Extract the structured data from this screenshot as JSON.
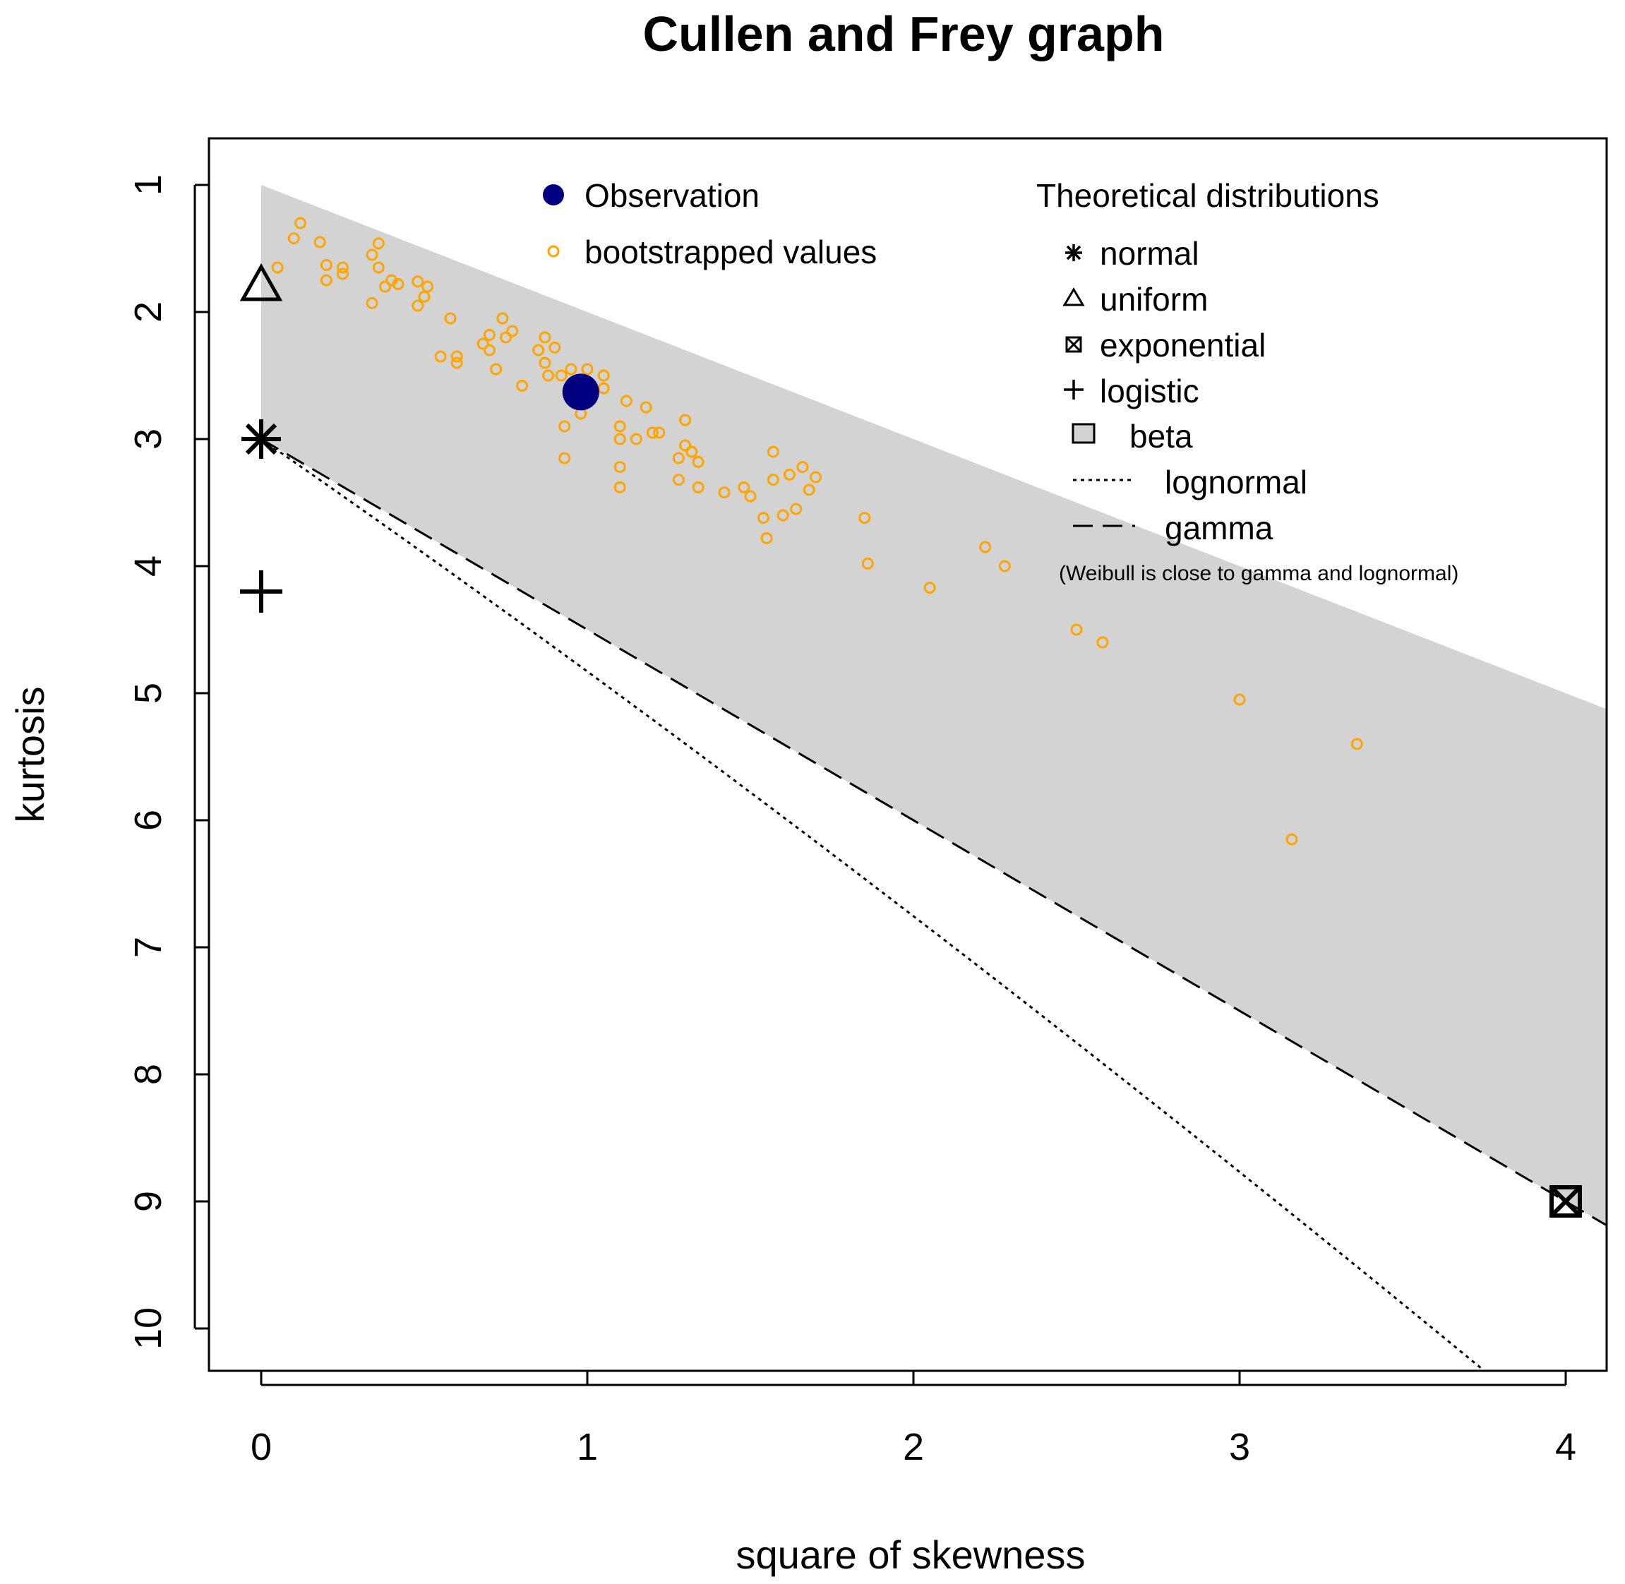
{
  "chart_data": {
    "type": "scatter",
    "title": "Cullen and Frey graph",
    "xlabel": "square of skewness",
    "ylabel": "kurtosis",
    "xlim": [
      0,
      4
    ],
    "ylim": [
      1,
      10
    ],
    "y_axis_inverted": true,
    "x_ticks": [
      "0",
      "1",
      "2",
      "3",
      "4"
    ],
    "y_ticks": [
      "1",
      "2",
      "3",
      "4",
      "5",
      "6",
      "7",
      "8",
      "9",
      "10"
    ],
    "legend_left": {
      "observation_label": "Observation",
      "bootstrap_label": "bootstrapped values"
    },
    "legend_right": {
      "title": "Theoretical distributions",
      "normal_label": "normal",
      "uniform_label": "uniform",
      "exponential_label": "exponential",
      "logistic_label": "logistic",
      "beta_label": "beta",
      "lognormal_label": "lognormal",
      "gamma_label": "gamma",
      "note": "(Weibull is close to gamma and lognormal)"
    },
    "colors": {
      "observation": "#000080",
      "bootstrap": "#FFA500",
      "beta_region": "#D3D3D3",
      "axis": "#000000"
    },
    "observation": {
      "x": 0.98,
      "y": 2.63
    },
    "theoretical_points": {
      "normal": {
        "x": 0,
        "y": 3.0
      },
      "uniform": {
        "x": 0,
        "y": 1.8
      },
      "exponential": {
        "x": 4,
        "y": 9.0
      },
      "logistic": {
        "x": 0,
        "y": 4.2
      }
    },
    "bootstrap": [
      {
        "x": 0.05,
        "y": 1.65
      },
      {
        "x": 0.1,
        "y": 1.42
      },
      {
        "x": 0.12,
        "y": 1.3
      },
      {
        "x": 0.18,
        "y": 1.45
      },
      {
        "x": 0.2,
        "y": 1.63
      },
      {
        "x": 0.2,
        "y": 1.75
      },
      {
        "x": 0.25,
        "y": 1.7
      },
      {
        "x": 0.25,
        "y": 1.65
      },
      {
        "x": 0.34,
        "y": 1.55
      },
      {
        "x": 0.34,
        "y": 1.93
      },
      {
        "x": 0.36,
        "y": 1.46
      },
      {
        "x": 0.36,
        "y": 1.65
      },
      {
        "x": 0.38,
        "y": 1.8
      },
      {
        "x": 0.4,
        "y": 1.75
      },
      {
        "x": 0.42,
        "y": 1.78
      },
      {
        "x": 0.48,
        "y": 1.76
      },
      {
        "x": 0.48,
        "y": 1.95
      },
      {
        "x": 0.5,
        "y": 1.88
      },
      {
        "x": 0.51,
        "y": 1.8
      },
      {
        "x": 0.55,
        "y": 2.35
      },
      {
        "x": 0.58,
        "y": 2.05
      },
      {
        "x": 0.6,
        "y": 2.4
      },
      {
        "x": 0.6,
        "y": 2.35
      },
      {
        "x": 0.68,
        "y": 2.25
      },
      {
        "x": 0.7,
        "y": 2.3
      },
      {
        "x": 0.7,
        "y": 2.18
      },
      {
        "x": 0.72,
        "y": 2.45
      },
      {
        "x": 0.74,
        "y": 2.05
      },
      {
        "x": 0.75,
        "y": 2.2
      },
      {
        "x": 0.77,
        "y": 2.15
      },
      {
        "x": 0.8,
        "y": 2.58
      },
      {
        "x": 0.85,
        "y": 2.3
      },
      {
        "x": 0.87,
        "y": 2.2
      },
      {
        "x": 0.87,
        "y": 2.4
      },
      {
        "x": 0.88,
        "y": 2.5
      },
      {
        "x": 0.9,
        "y": 2.28
      },
      {
        "x": 0.92,
        "y": 2.5
      },
      {
        "x": 0.93,
        "y": 2.9
      },
      {
        "x": 0.93,
        "y": 3.15
      },
      {
        "x": 0.95,
        "y": 2.45
      },
      {
        "x": 0.98,
        "y": 2.8
      },
      {
        "x": 1.0,
        "y": 2.45
      },
      {
        "x": 1.05,
        "y": 2.5
      },
      {
        "x": 1.05,
        "y": 2.6
      },
      {
        "x": 1.1,
        "y": 3.0
      },
      {
        "x": 1.1,
        "y": 3.38
      },
      {
        "x": 1.1,
        "y": 2.9
      },
      {
        "x": 1.1,
        "y": 3.22
      },
      {
        "x": 1.12,
        "y": 2.7
      },
      {
        "x": 1.15,
        "y": 3.0
      },
      {
        "x": 1.18,
        "y": 2.75
      },
      {
        "x": 1.2,
        "y": 2.95
      },
      {
        "x": 1.22,
        "y": 2.95
      },
      {
        "x": 1.28,
        "y": 3.15
      },
      {
        "x": 1.28,
        "y": 3.32
      },
      {
        "x": 1.3,
        "y": 2.85
      },
      {
        "x": 1.3,
        "y": 3.05
      },
      {
        "x": 1.32,
        "y": 3.1
      },
      {
        "x": 1.32,
        "y": 3.1
      },
      {
        "x": 1.34,
        "y": 3.18
      },
      {
        "x": 1.34,
        "y": 3.38
      },
      {
        "x": 1.42,
        "y": 3.42
      },
      {
        "x": 1.48,
        "y": 3.38
      },
      {
        "x": 1.5,
        "y": 3.45
      },
      {
        "x": 1.54,
        "y": 3.62
      },
      {
        "x": 1.55,
        "y": 3.78
      },
      {
        "x": 1.57,
        "y": 3.1
      },
      {
        "x": 1.57,
        "y": 3.32
      },
      {
        "x": 1.6,
        "y": 3.6
      },
      {
        "x": 1.62,
        "y": 3.28
      },
      {
        "x": 1.64,
        "y": 3.55
      },
      {
        "x": 1.66,
        "y": 3.22
      },
      {
        "x": 1.68,
        "y": 3.4
      },
      {
        "x": 1.7,
        "y": 3.3
      },
      {
        "x": 1.85,
        "y": 3.62
      },
      {
        "x": 1.86,
        "y": 3.98
      },
      {
        "x": 2.05,
        "y": 4.17
      },
      {
        "x": 2.22,
        "y": 3.85
      },
      {
        "x": 2.28,
        "y": 4.0
      },
      {
        "x": 2.5,
        "y": 4.5
      },
      {
        "x": 2.58,
        "y": 4.6
      },
      {
        "x": 3.0,
        "y": 5.05
      },
      {
        "x": 3.16,
        "y": 6.15
      },
      {
        "x": 3.36,
        "y": 5.4
      }
    ]
  }
}
